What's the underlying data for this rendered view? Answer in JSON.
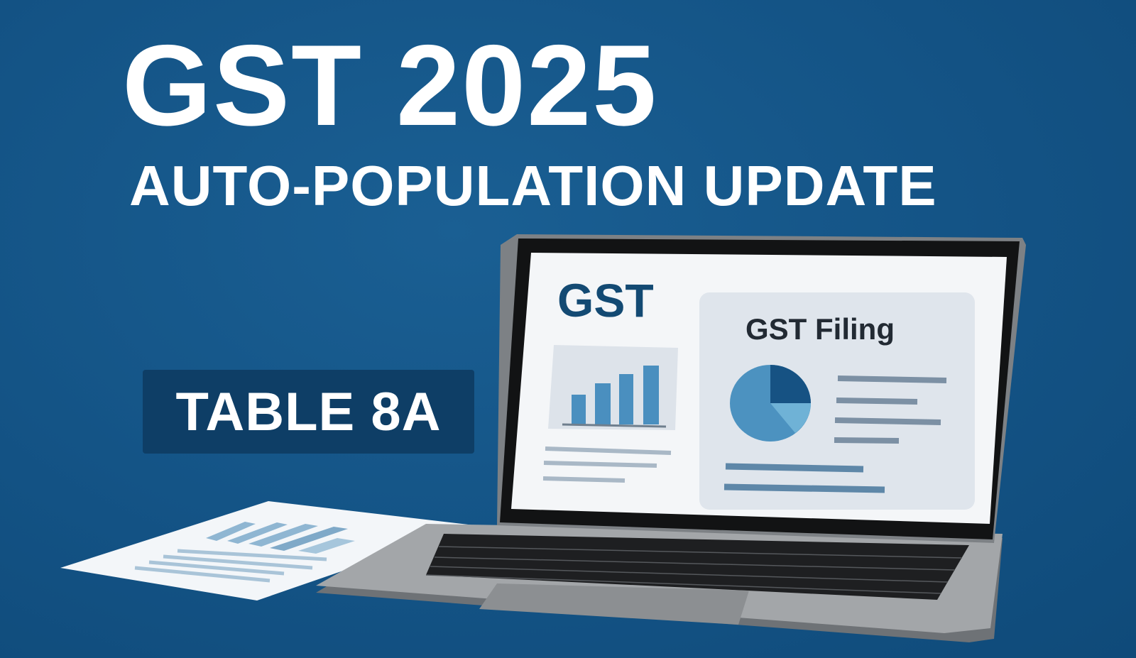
{
  "headline": "GST 2025",
  "subheadline": "AUTO-POPULATION UPDATE",
  "badge": "TABLE 8A",
  "laptop_screen": {
    "logo_text": "GST",
    "panel_title": "GST Filing"
  },
  "colors": {
    "background": "#145587",
    "badge": "#0e3e66",
    "screen_brand": "#134a73",
    "chart_bar": "#4a8fbf"
  }
}
